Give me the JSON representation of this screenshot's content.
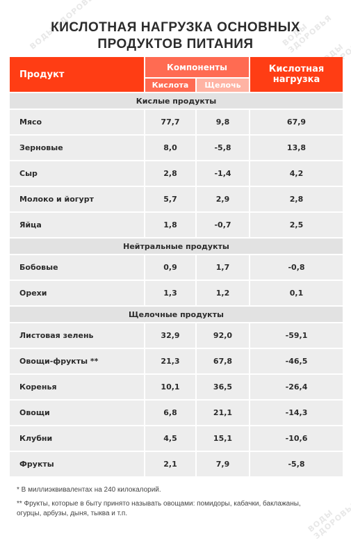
{
  "title_line1": "КИСЛОТНАЯ НАГРУЗКА ОСНОВНЫХ",
  "title_line2": "ПРОДУКТОВ ПИТАНИЯ",
  "watermark": "ВОДЫ ЗДОРОВЬЯ",
  "header": {
    "product": "Продукт",
    "components": "Компоненты",
    "acid": "Кислота",
    "alkali": "Щелочь",
    "load": "Кислотная нагрузка"
  },
  "sections": [
    {
      "title": "Кислые продукты",
      "rows": [
        {
          "name": "Мясо",
          "acid": "77,7",
          "alkali": "9,8",
          "load": "67,9"
        },
        {
          "name": "Зерновые",
          "acid": "8,0",
          "alkali": "-5,8",
          "load": "13,8"
        },
        {
          "name": "Сыр",
          "acid": "2,8",
          "alkali": "-1,4",
          "load": "4,2"
        },
        {
          "name": "Молоко и йогурт",
          "acid": "5,7",
          "alkali": "2,9",
          "load": "2,8"
        },
        {
          "name": "Яйца",
          "acid": "1,8",
          "alkali": "-0,7",
          "load": "2,5"
        }
      ]
    },
    {
      "title": "Нейтральные продукты",
      "rows": [
        {
          "name": "Бобовые",
          "acid": "0,9",
          "alkali": "1,7",
          "load": "-0,8"
        },
        {
          "name": "Орехи",
          "acid": "1,3",
          "alkali": "1,2",
          "load": "0,1"
        }
      ]
    },
    {
      "title": "Щелочные продукты",
      "rows": [
        {
          "name": "Листовая зелень",
          "acid": "32,9",
          "alkali": "92,0",
          "load": "-59,1"
        },
        {
          "name": "Овощи-фрукты **",
          "acid": "21,3",
          "alkali": "67,8",
          "load": "-46,5"
        },
        {
          "name": "Коренья",
          "acid": "10,1",
          "alkali": "36,5",
          "load": "-26,4"
        },
        {
          "name": "Овощи",
          "acid": "6,8",
          "alkali": "21,1",
          "load": "-14,3"
        },
        {
          "name": "Клубни",
          "acid": "4,5",
          "alkali": "15,1",
          "load": "-10,6"
        },
        {
          "name": "Фрукты",
          "acid": "2,1",
          "alkali": "7,9",
          "load": "-5,8"
        }
      ]
    }
  ],
  "footnote1": "* В миллиэквивалентах на 240 килокалорий.",
  "footnote2_line1": "** Фрукты, которые в быту принято называть овощами: помидоры, кабачки, баклажаны,",
  "footnote2_line2": "огурцы, арбузы, дыня, тыква и т.п."
}
